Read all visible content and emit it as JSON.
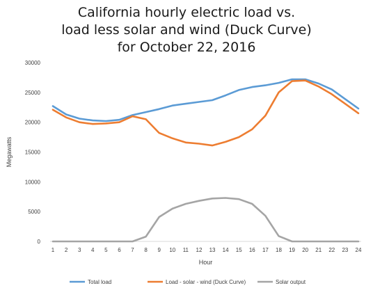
{
  "chart_data": {
    "type": "line",
    "title_lines": [
      "California hourly electric load vs.",
      "load less solar and wind (Duck Curve)",
      "for October 22, 2016"
    ],
    "xlabel": "Hour",
    "ylabel": "Megawatts",
    "x": [
      1,
      2,
      3,
      4,
      5,
      6,
      7,
      8,
      9,
      10,
      11,
      12,
      13,
      14,
      15,
      16,
      17,
      18,
      19,
      20,
      21,
      22,
      23,
      24
    ],
    "ylim": [
      0,
      30000
    ],
    "yticks": [
      "0",
      "5000",
      "10000",
      "15000",
      "20000",
      "25000",
      "30000"
    ],
    "grid": false,
    "legend_position": "bottom",
    "series": [
      {
        "name": "Total load",
        "color": "#5b9bd5",
        "values": [
          22700,
          21300,
          20600,
          20300,
          20200,
          20400,
          21200,
          21700,
          22200,
          22800,
          23100,
          23400,
          23700,
          24500,
          25400,
          25900,
          26200,
          26600,
          27200,
          27200,
          26500,
          25500,
          23900,
          22300
        ]
      },
      {
        "name": "Load - solar - wind (Duck Curve)",
        "color": "#ed7d31",
        "values": [
          22100,
          20800,
          20000,
          19700,
          19800,
          20000,
          21000,
          20500,
          18200,
          17300,
          16600,
          16400,
          16100,
          16700,
          17500,
          18800,
          21100,
          25000,
          26900,
          27000,
          26000,
          24700,
          23100,
          21500
        ]
      },
      {
        "name": "Solar output",
        "color": "#a5a5a5",
        "values": [
          0,
          0,
          0,
          0,
          0,
          0,
          0,
          800,
          4100,
          5500,
          6300,
          6800,
          7200,
          7300,
          7100,
          6300,
          4300,
          900,
          0,
          0,
          0,
          0,
          0,
          0
        ]
      }
    ]
  }
}
